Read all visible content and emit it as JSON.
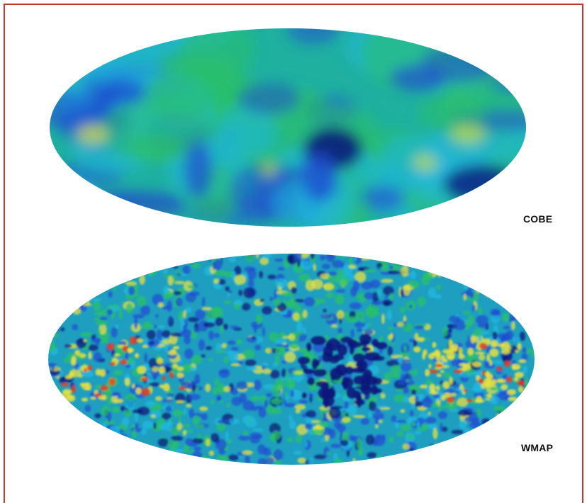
{
  "labels": {
    "cobe": "COBE",
    "wmap": "WMAP"
  },
  "colors": {
    "frame": "#c0392b",
    "background": "#ffffff",
    "map_base_cobe": "#1fb0a0",
    "map_base_wmap": "#1e9fc0",
    "cold_dark": "#0a1a7a",
    "cold": "#1f4fd0",
    "cyan": "#1fb8e0",
    "green": "#29c06a",
    "warm": "#e8e040",
    "hot": "#e84020"
  }
}
